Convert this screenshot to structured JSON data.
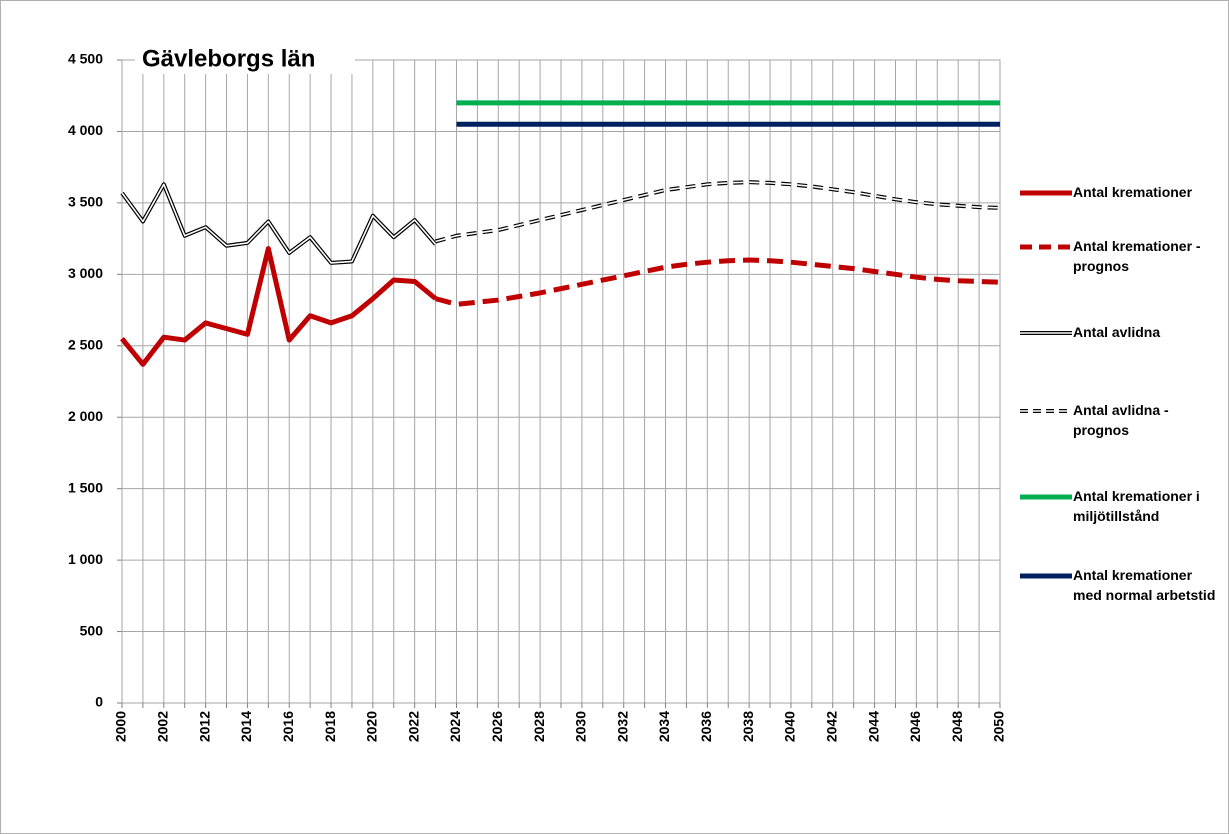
{
  "chart_data": {
    "type": "line",
    "title": "Gävleborgs län",
    "categories": [
      "2000",
      null,
      "2002",
      null,
      "2012",
      null,
      "2014",
      null,
      "2016",
      null,
      "2018",
      null,
      "2020",
      null,
      "2022",
      null,
      "2024",
      null,
      "2026",
      null,
      "2028",
      null,
      "2030",
      null,
      "2032",
      null,
      "2034",
      null,
      "2036",
      null,
      "2038",
      null,
      "2040",
      null,
      "2042",
      null,
      "2044",
      null,
      "2046",
      null,
      "2048",
      null,
      "2050"
    ],
    "ylim": [
      0,
      4500
    ],
    "yticks": [
      0,
      {
        "value": 500,
        "label": "500"
      },
      {
        "value": 1000,
        "label": "1 000"
      },
      {
        "value": 1500,
        "label": "1 500"
      },
      {
        "value": 2000,
        "label": "2 000"
      },
      {
        "value": 2500,
        "label": "2 500"
      },
      {
        "value": 3000,
        "label": "3 000"
      },
      {
        "value": 3500,
        "label": "3 500"
      },
      {
        "value": 4000,
        "label": "4 000"
      },
      {
        "value": 4500,
        "label": "4 500"
      }
    ],
    "grid": true,
    "legend": "right",
    "series": [
      {
        "name": "Antal kremationer",
        "color": "#c00000",
        "dashed": false,
        "outlined": false,
        "values": [
          2550,
          2370,
          2560,
          2540,
          2660,
          2620,
          2580,
          3180,
          2540,
          2710,
          2660,
          2710,
          2830,
          2960,
          2950,
          2830,
          null,
          null,
          null,
          null,
          null,
          null,
          null,
          null,
          null,
          null,
          null,
          null,
          null,
          null,
          null,
          null,
          null,
          null,
          null,
          null,
          null,
          null,
          null,
          null,
          null,
          null,
          null
        ]
      },
      {
        "name": "Antal kremationer - prognos",
        "color": "#c00000",
        "dashed": true,
        "outlined": false,
        "values": [
          null,
          null,
          null,
          null,
          null,
          null,
          null,
          null,
          null,
          null,
          null,
          null,
          null,
          null,
          null,
          2830,
          2790,
          2805,
          2820,
          2845,
          2870,
          2900,
          2930,
          2960,
          2990,
          3020,
          3050,
          3070,
          3085,
          3095,
          3100,
          3095,
          3085,
          3070,
          3055,
          3040,
          3020,
          3000,
          2980,
          2965,
          2955,
          2950,
          2945
        ]
      },
      {
        "name": "Antal avlidna",
        "color": "#000000",
        "dashed": false,
        "outlined": true,
        "values": [
          3570,
          3370,
          3630,
          3270,
          3330,
          3200,
          3220,
          3370,
          3150,
          3260,
          3080,
          3090,
          3410,
          3260,
          3380,
          3210,
          null,
          null,
          null,
          null,
          null,
          null,
          null,
          null,
          null,
          null,
          null,
          null,
          null,
          null,
          null,
          null,
          null,
          null,
          null,
          null,
          null,
          null,
          null,
          null,
          null,
          null,
          null
        ]
      },
      {
        "name": "Antal avlidna - prognos",
        "color": "#000000",
        "dashed": true,
        "outlined": true,
        "values": [
          null,
          null,
          null,
          null,
          null,
          null,
          null,
          null,
          null,
          null,
          null,
          null,
          null,
          null,
          null,
          3230,
          3270,
          3290,
          3310,
          3345,
          3380,
          3415,
          3450,
          3485,
          3520,
          3555,
          3590,
          3610,
          3630,
          3640,
          3645,
          3640,
          3630,
          3615,
          3595,
          3575,
          3550,
          3525,
          3505,
          3490,
          3480,
          3470,
          3465
        ]
      },
      {
        "name": "Antal kremationer i miljötillstånd",
        "color": "#00b050",
        "dashed": false,
        "outlined": false,
        "values": [
          null,
          null,
          null,
          null,
          null,
          null,
          null,
          null,
          null,
          null,
          null,
          null,
          null,
          null,
          null,
          null,
          4200,
          4200,
          4200,
          4200,
          4200,
          4200,
          4200,
          4200,
          4200,
          4200,
          4200,
          4200,
          4200,
          4200,
          4200,
          4200,
          4200,
          4200,
          4200,
          4200,
          4200,
          4200,
          4200,
          4200,
          4200,
          4200,
          4200
        ]
      },
      {
        "name": "Antal kremationer med normal arbetstid",
        "color": "#002060",
        "dashed": false,
        "outlined": false,
        "values": [
          null,
          null,
          null,
          null,
          null,
          null,
          null,
          null,
          null,
          null,
          null,
          null,
          null,
          null,
          null,
          null,
          4050,
          4050,
          4050,
          4050,
          4050,
          4050,
          4050,
          4050,
          4050,
          4050,
          4050,
          4050,
          4050,
          4050,
          4050,
          4050,
          4050,
          4050,
          4050,
          4050,
          4050,
          4050,
          4050,
          4050,
          4050,
          4050,
          4050
        ]
      }
    ]
  }
}
